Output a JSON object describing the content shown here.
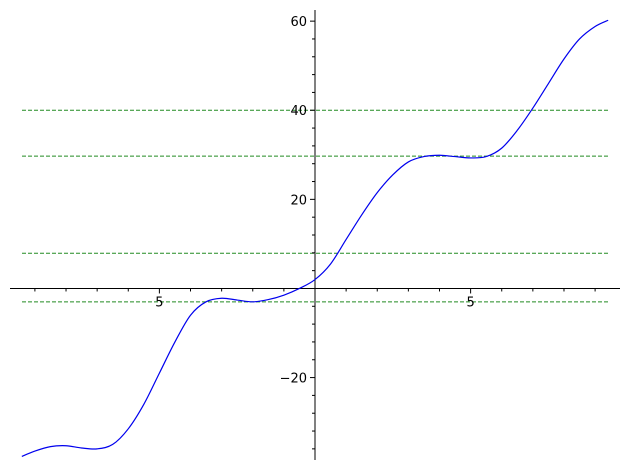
{
  "chart_data": {
    "type": "line",
    "title": "",
    "xlabel": "",
    "ylabel": "",
    "xlim": [
      -9.8,
      9.8
    ],
    "ylim": [
      -38.5,
      62.5
    ],
    "x_ticks": [
      {
        "value": -5,
        "label": "5"
      },
      {
        "value": 5,
        "label": "5"
      }
    ],
    "y_ticks": [
      {
        "value": 60,
        "label": "60"
      },
      {
        "value": 40,
        "label": "40"
      },
      {
        "value": 20,
        "label": "20"
      },
      {
        "value": -20,
        "label": "−20"
      }
    ],
    "grid": false,
    "legend": "none",
    "series": [
      {
        "color": "#0000ee",
        "x": [
          -9.42,
          -9.0,
          -8.5,
          -8.0,
          -7.5,
          -7.0,
          -6.5,
          -6.0,
          -5.5,
          -5.0,
          -4.5,
          -4.0,
          -3.5,
          -3.0,
          -2.5,
          -2.0,
          -1.5,
          -1.0,
          -0.5,
          0.0,
          0.5,
          1.0,
          1.5,
          2.0,
          2.5,
          3.0,
          3.5,
          4.0,
          4.5,
          5.0,
          5.5,
          6.0,
          6.5,
          7.0,
          7.5,
          8.0,
          8.5,
          9.0,
          9.42
        ],
        "y": [
          -37.7,
          -36.5,
          -35.5,
          -35.3,
          -35.8,
          -36.0,
          -35.0,
          -31.5,
          -26.0,
          -19.0,
          -12.0,
          -6.0,
          -3.0,
          -2.2,
          -2.6,
          -3.0,
          -2.5,
          -1.5,
          0.0,
          2.0,
          5.5,
          11.0,
          16.5,
          21.5,
          25.5,
          28.4,
          29.6,
          29.9,
          29.6,
          29.3,
          29.6,
          31.5,
          35.5,
          40.5,
          46.0,
          51.5,
          56.0,
          58.8,
          60.2
        ]
      }
    ],
    "reference_lines": [
      {
        "y": 40,
        "color": "#228b22"
      },
      {
        "y": 29.7,
        "color": "#228b22"
      },
      {
        "y": 7.9,
        "color": "#228b22"
      },
      {
        "y": -3.0,
        "color": "#228b22"
      }
    ]
  }
}
